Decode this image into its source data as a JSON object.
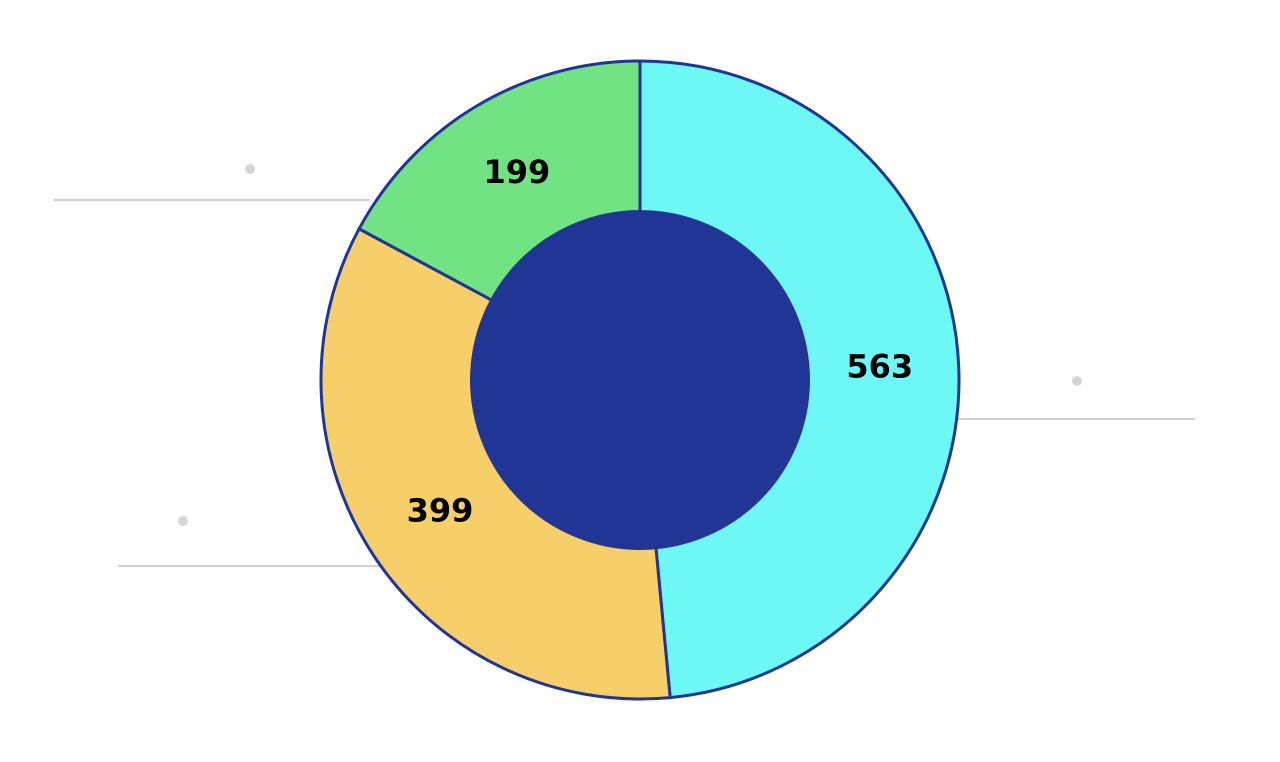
{
  "chart_data": {
    "type": "donut",
    "values": [
      563,
      399,
      199
    ],
    "colors": [
      "#6df7f5",
      "#f6cf6b",
      "#72e383"
    ],
    "center_color": "#213594",
    "stroke_color": "#213594"
  }
}
